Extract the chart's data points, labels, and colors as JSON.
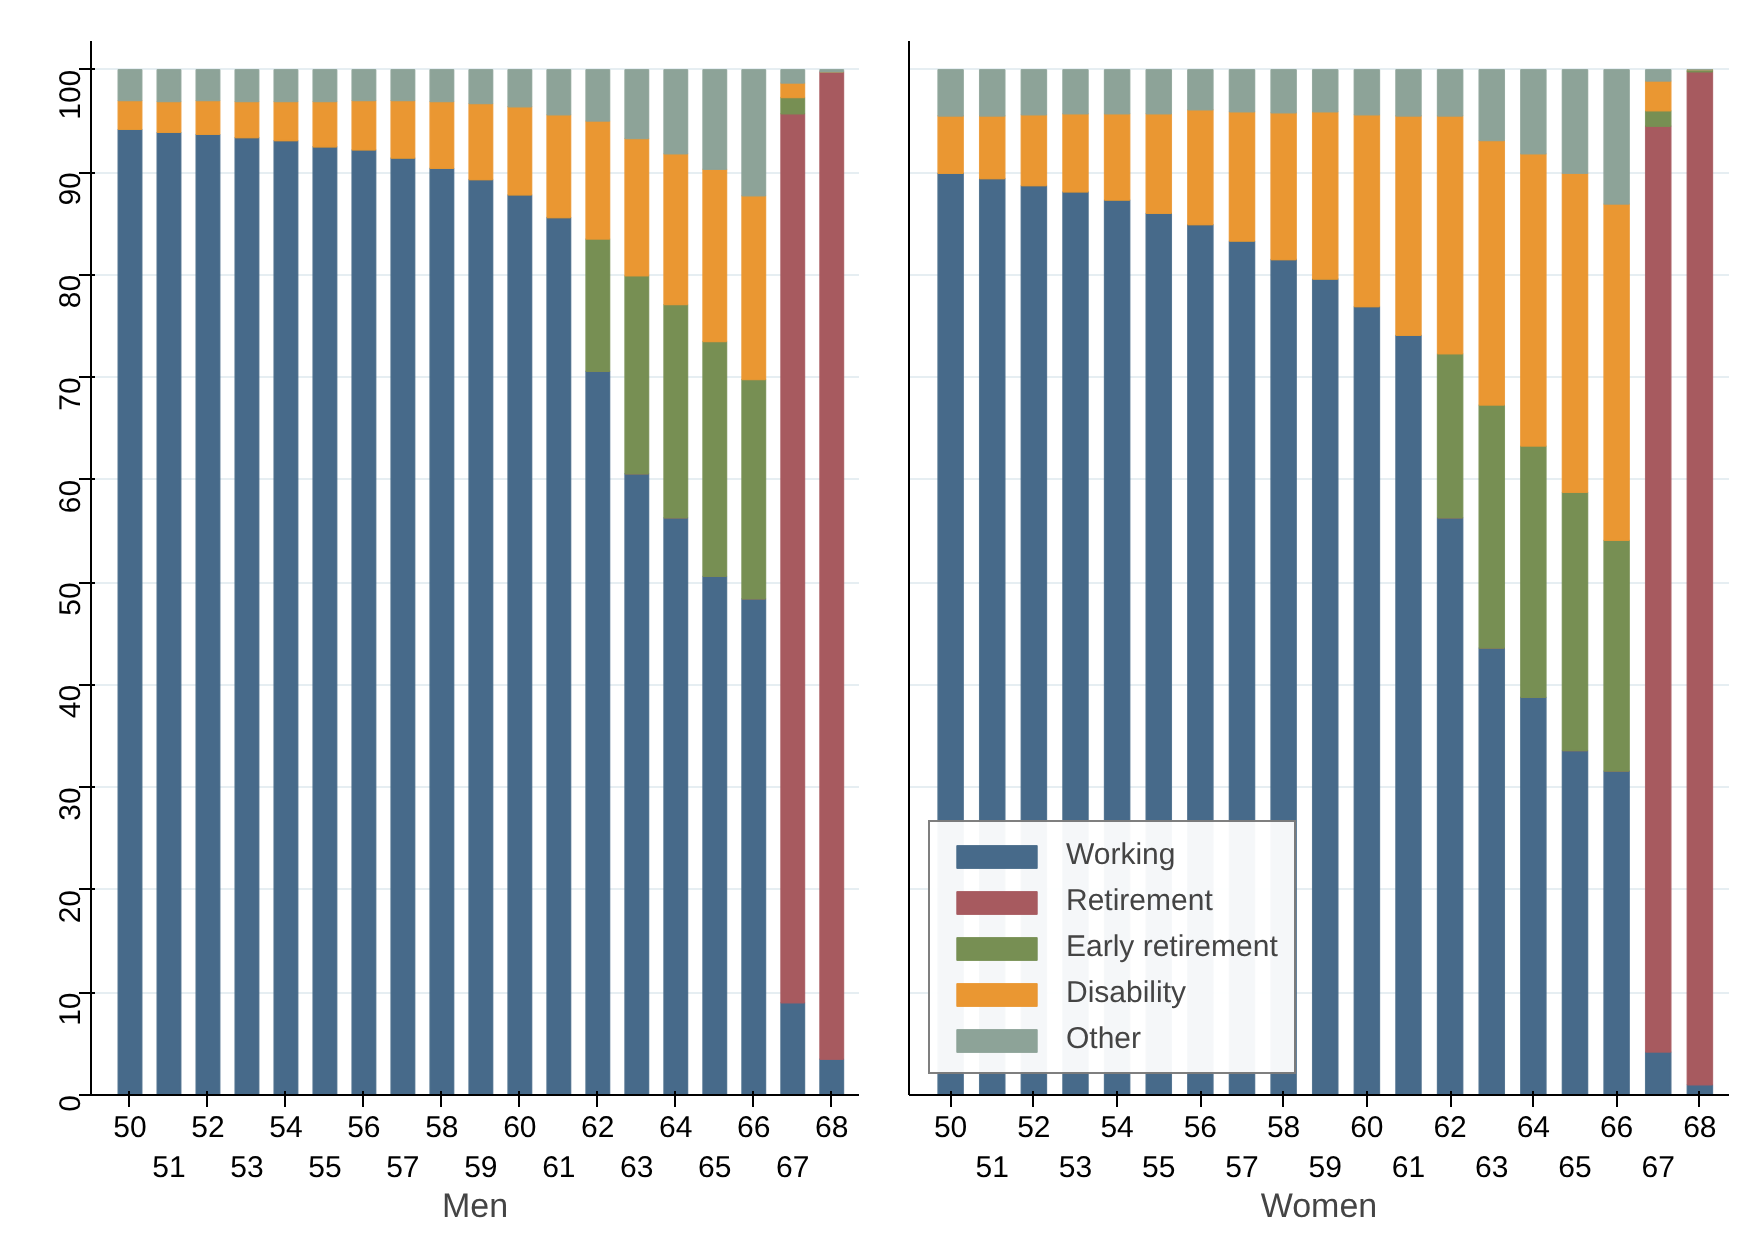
{
  "chart_data": [
    {
      "type": "bar",
      "stacked": true,
      "xlabel": "Men",
      "categories": [
        "50",
        "51",
        "52",
        "53",
        "54",
        "55",
        "56",
        "57",
        "58",
        "59",
        "60",
        "61",
        "62",
        "63",
        "64",
        "65",
        "66",
        "67",
        "68"
      ],
      "ylim": [
        0,
        102.8
      ],
      "yticks": [
        0,
        10,
        20,
        30,
        40,
        50,
        60,
        70,
        80,
        90,
        100
      ],
      "grid": "y",
      "series": [
        {
          "color": "#476a8a",
          "values": [
            94.2,
            93.9,
            93.7,
            93.4,
            93.1,
            92.5,
            92.2,
            91.4,
            90.4,
            89.3,
            87.8,
            85.6,
            70.6,
            60.6,
            56.3,
            50.6,
            48.4,
            9.0,
            3.5
          ]
        },
        {
          "color": "#a75a5f",
          "values": [
            0,
            0,
            0,
            0,
            0,
            0,
            0,
            0,
            0,
            0,
            0,
            0,
            0,
            0,
            0,
            0,
            0,
            86.7,
            96.3
          ]
        },
        {
          "color": "#778f53",
          "values": [
            0,
            0,
            0,
            0,
            0,
            0,
            0,
            0,
            0,
            0,
            0,
            0,
            12.9,
            19.3,
            20.8,
            22.9,
            21.4,
            1.6,
            0
          ]
        },
        {
          "color": "#ea9732",
          "values": [
            2.8,
            3.0,
            3.3,
            3.5,
            3.8,
            4.4,
            4.8,
            5.6,
            6.5,
            7.4,
            8.6,
            10.0,
            11.5,
            13.4,
            14.7,
            16.8,
            17.9,
            1.4,
            0
          ]
        },
        {
          "color": "#8da398",
          "values": [
            3.0,
            3.1,
            3.0,
            3.1,
            3.1,
            3.1,
            3.0,
            3.0,
            3.1,
            3.3,
            3.6,
            4.4,
            5.0,
            6.7,
            8.2,
            9.7,
            12.3,
            1.3,
            0.2
          ]
        }
      ]
    },
    {
      "type": "bar",
      "stacked": true,
      "xlabel": "Women",
      "categories": [
        "50",
        "51",
        "52",
        "53",
        "54",
        "55",
        "56",
        "57",
        "58",
        "59",
        "60",
        "61",
        "62",
        "63",
        "64",
        "65",
        "66",
        "67",
        "68"
      ],
      "ylim": [
        0,
        102.8
      ],
      "yticks": [
        0,
        10,
        20,
        30,
        40,
        50,
        60,
        70,
        80,
        90,
        100
      ],
      "grid": "y",
      "legend": "bottom left",
      "tick_labels": "x",
      "series": [
        {
          "name": "Working",
          "color": "#476a8a",
          "values": [
            89.9,
            89.4,
            88.7,
            88.1,
            87.3,
            86.0,
            84.9,
            83.3,
            81.5,
            79.6,
            76.9,
            74.1,
            56.3,
            43.6,
            38.8,
            33.6,
            31.6,
            4.2,
            1.0
          ]
        },
        {
          "name": "Retirement",
          "color": "#a75a5f",
          "values": [
            0,
            0,
            0,
            0,
            0,
            0,
            0,
            0,
            0,
            0,
            0,
            0,
            0,
            0,
            0,
            0,
            0,
            90.3,
            98.8
          ]
        },
        {
          "name": "Early retirement",
          "color": "#778f53",
          "values": [
            0,
            0,
            0,
            0,
            0,
            0,
            0,
            0,
            0,
            0,
            0,
            0,
            16.0,
            23.7,
            24.5,
            25.2,
            22.5,
            1.5,
            0.2
          ]
        },
        {
          "name": "Disability",
          "color": "#ea9732",
          "values": [
            5.6,
            6.1,
            6.9,
            7.6,
            8.4,
            9.7,
            11.2,
            12.6,
            14.3,
            16.3,
            18.7,
            21.4,
            23.2,
            25.8,
            28.5,
            31.1,
            32.8,
            2.9,
            0
          ]
        },
        {
          "name": "Other",
          "color": "#8da398",
          "values": [
            4.5,
            4.5,
            4.4,
            4.3,
            4.3,
            4.3,
            3.9,
            4.1,
            4.2,
            4.1,
            4.4,
            4.5,
            4.5,
            6.9,
            8.2,
            10.1,
            13.1,
            1.1,
            0
          ]
        }
      ]
    }
  ]
}
